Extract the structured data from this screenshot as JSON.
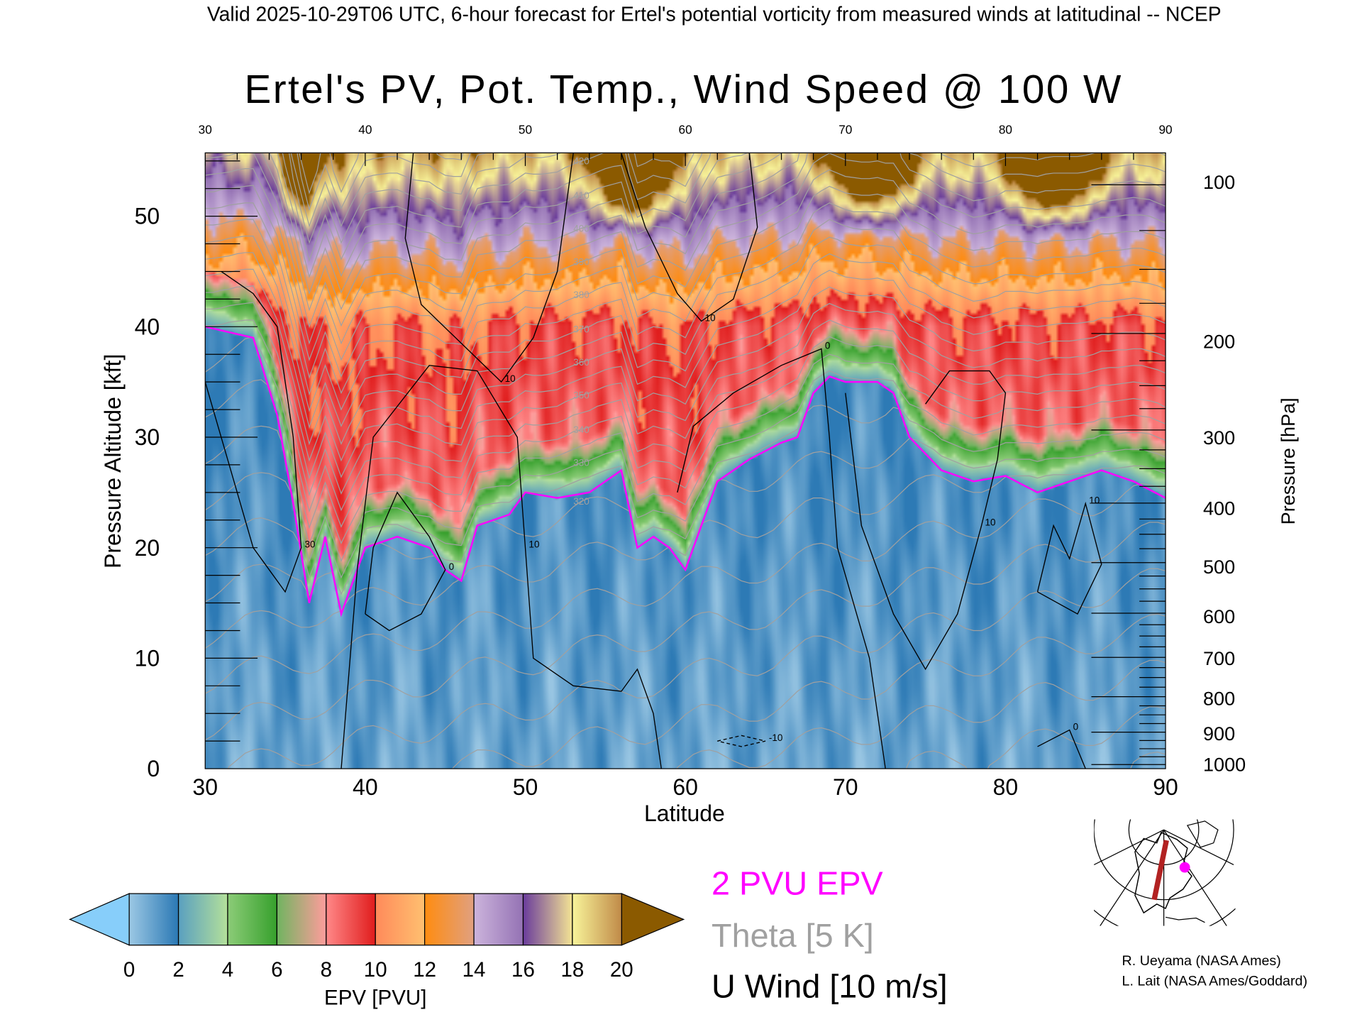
{
  "header": {
    "subtitle": "Valid 2025-10-29T06 UTC, 6-hour forecast for Ertel's potential vorticity from measured winds at latitudinal -- NCEP"
  },
  "legend": {
    "pv_line": "2 PVU EPV",
    "theta": "Theta [5 K]",
    "uwind": "U Wind [10 m/s]",
    "pv_line_color": "#ff00ff",
    "theta_color": "#a0a0a0",
    "uwind_color": "#000000"
  },
  "credits": {
    "line1": "R. Ueyama (NASA Ames)",
    "line2": "L. Lait (NASA Ames/Goddard)"
  },
  "chart_data": {
    "type": "heatmap",
    "title": "Ertel's PV, Pot. Temp., Wind Speed @ 100 W",
    "xlabel": "Latitude",
    "ylabel": "Pressure Altitude [kft]",
    "y2label": "Pressure [hPa]",
    "xlim": [
      30,
      90
    ],
    "ylim": [
      0,
      55.7
    ],
    "xticks": [
      "30",
      "40",
      "50",
      "60",
      "70",
      "80",
      "90"
    ],
    "top_xticks": [
      "30",
      "40",
      "50",
      "60",
      "70",
      "80",
      "90"
    ],
    "yticks": [
      "0",
      "10",
      "20",
      "30",
      "40",
      "50"
    ],
    "pressure_ticks": [
      {
        "label": "100",
        "kft": 53.1
      },
      {
        "label": "200",
        "kft": 38.7
      },
      {
        "label": "300",
        "kft": 30.0
      },
      {
        "label": "400",
        "kft": 23.6
      },
      {
        "label": "500",
        "kft": 18.3
      },
      {
        "label": "600",
        "kft": 13.8
      },
      {
        "label": "700",
        "kft": 10.0
      },
      {
        "label": "800",
        "kft": 6.4
      },
      {
        "label": "900",
        "kft": 3.2
      },
      {
        "label": "1000",
        "kft": 0.4
      }
    ],
    "tropopause_2pvu": [
      [
        30,
        40
      ],
      [
        33,
        39
      ],
      [
        34.5,
        32
      ],
      [
        35.5,
        24
      ],
      [
        36.5,
        15
      ],
      [
        37.5,
        21
      ],
      [
        38.5,
        14
      ],
      [
        40,
        20
      ],
      [
        42,
        21
      ],
      [
        44,
        20
      ],
      [
        45,
        18
      ],
      [
        46,
        17
      ],
      [
        47,
        22
      ],
      [
        49,
        23
      ],
      [
        50,
        25
      ],
      [
        52,
        24.5
      ],
      [
        54,
        25
      ],
      [
        56,
        27
      ],
      [
        57,
        20
      ],
      [
        58,
        21
      ],
      [
        59,
        20
      ],
      [
        60,
        18
      ],
      [
        61,
        22
      ],
      [
        62,
        26
      ],
      [
        64,
        28
      ],
      [
        66,
        29.5
      ],
      [
        67,
        30
      ],
      [
        68,
        34
      ],
      [
        69,
        35.5
      ],
      [
        70,
        35
      ],
      [
        72,
        35
      ],
      [
        73,
        34
      ],
      [
        74,
        30
      ],
      [
        76,
        27
      ],
      [
        78,
        26
      ],
      [
        80,
        26.5
      ],
      [
        82,
        25
      ],
      [
        84,
        26
      ],
      [
        86,
        27
      ],
      [
        88,
        26
      ],
      [
        90,
        24.5
      ]
    ],
    "theta_levels_labeled": [
      "320",
      "330",
      "340",
      "350",
      "360",
      "370",
      "380",
      "390",
      "400",
      "410",
      "420"
    ],
    "uwind_contours": [
      {
        "label": "10",
        "points": [
          [
            43,
            55.7
          ],
          [
            42.5,
            48
          ],
          [
            43.5,
            42
          ],
          [
            46,
            38.5
          ],
          [
            48.5,
            35
          ],
          [
            50.5,
            39
          ],
          [
            52,
            45
          ],
          [
            53,
            55.7
          ]
        ]
      },
      {
        "label": "10",
        "points": [
          [
            38.5,
            0
          ],
          [
            39.5,
            18
          ],
          [
            40.5,
            30
          ],
          [
            44,
            36.5
          ],
          [
            47,
            36
          ],
          [
            49.5,
            30
          ],
          [
            50,
            20
          ],
          [
            50.5,
            10
          ],
          [
            53,
            7.5
          ],
          [
            56,
            7
          ],
          [
            57,
            9
          ],
          [
            58,
            5
          ],
          [
            58.5,
            0
          ]
        ]
      },
      {
        "label": "0",
        "points": [
          [
            40,
            14
          ],
          [
            40.5,
            20
          ],
          [
            42,
            25
          ],
          [
            44,
            21
          ],
          [
            45,
            18
          ],
          [
            43.5,
            14
          ],
          [
            41.5,
            12.5
          ],
          [
            40,
            14
          ]
        ]
      },
      {
        "label": "10",
        "points": [
          [
            56,
            55.7
          ],
          [
            57.5,
            49
          ],
          [
            59.5,
            43
          ],
          [
            61,
            40.5
          ],
          [
            63,
            42.5
          ],
          [
            64.5,
            49
          ],
          [
            64,
            55.7
          ]
        ]
      },
      {
        "label": "0",
        "points": [
          [
            59.5,
            25
          ],
          [
            60.5,
            31
          ],
          [
            63,
            34
          ],
          [
            66,
            36.5
          ],
          [
            68.5,
            38
          ],
          [
            69,
            30
          ],
          [
            69.5,
            20
          ],
          [
            71.5,
            10
          ],
          [
            72.5,
            0
          ]
        ]
      },
      {
        "label": "10",
        "points": [
          [
            70,
            34
          ],
          [
            71,
            22
          ],
          [
            73,
            14
          ],
          [
            75,
            9
          ],
          [
            77,
            14
          ],
          [
            78.5,
            22
          ],
          [
            79.5,
            28
          ],
          [
            80,
            34
          ],
          [
            79,
            36
          ],
          [
            76.5,
            36
          ],
          [
            75,
            33
          ]
        ]
      },
      {
        "label": "30",
        "points": [
          [
            31,
            45
          ],
          [
            33,
            43
          ],
          [
            34.5,
            40
          ],
          [
            35.5,
            30
          ],
          [
            36,
            20
          ],
          [
            35,
            16
          ],
          [
            33,
            20
          ],
          [
            31,
            30
          ],
          [
            30,
            35
          ]
        ]
      },
      {
        "label": "10",
        "points": [
          [
            82,
            16
          ],
          [
            83,
            22
          ],
          [
            84,
            19
          ],
          [
            85,
            24
          ],
          [
            86,
            18.5
          ],
          [
            84.5,
            14
          ],
          [
            82,
            16
          ]
        ]
      },
      {
        "label": "-10",
        "points": [
          [
            62,
            2.5
          ],
          [
            63.5,
            3
          ],
          [
            65,
            2.5
          ],
          [
            63.5,
            2
          ],
          [
            62,
            2.5
          ]
        ],
        "dashed": true
      },
      {
        "label": "0",
        "points": [
          [
            82,
            2
          ],
          [
            84,
            3.5
          ],
          [
            85,
            0
          ]
        ]
      }
    ],
    "colorbar": {
      "label": "EPV [PVU]",
      "ticks": [
        "0",
        "2",
        "4",
        "6",
        "8",
        "10",
        "12",
        "14",
        "16",
        "18",
        "20"
      ],
      "under_color": "#87cefa",
      "over_color": "#8b5a00",
      "segments": [
        [
          "#9cc8e4",
          "#2a78b4"
        ],
        [
          "#5aa0c0",
          "#b4e09a"
        ],
        [
          "#8ccc78",
          "#36a02c"
        ],
        [
          "#70b460",
          "#ff9c9c"
        ],
        [
          "#ff8888",
          "#e01c1c"
        ],
        [
          "#ff8a5a",
          "#ffc070"
        ],
        [
          "#ff8c10",
          "#e0a080"
        ],
        [
          "#ccb4dc",
          "#9472b4"
        ],
        [
          "#6a3c9c",
          "#f4e494"
        ],
        [
          "#f8f49a",
          "#c08a48"
        ]
      ]
    }
  }
}
